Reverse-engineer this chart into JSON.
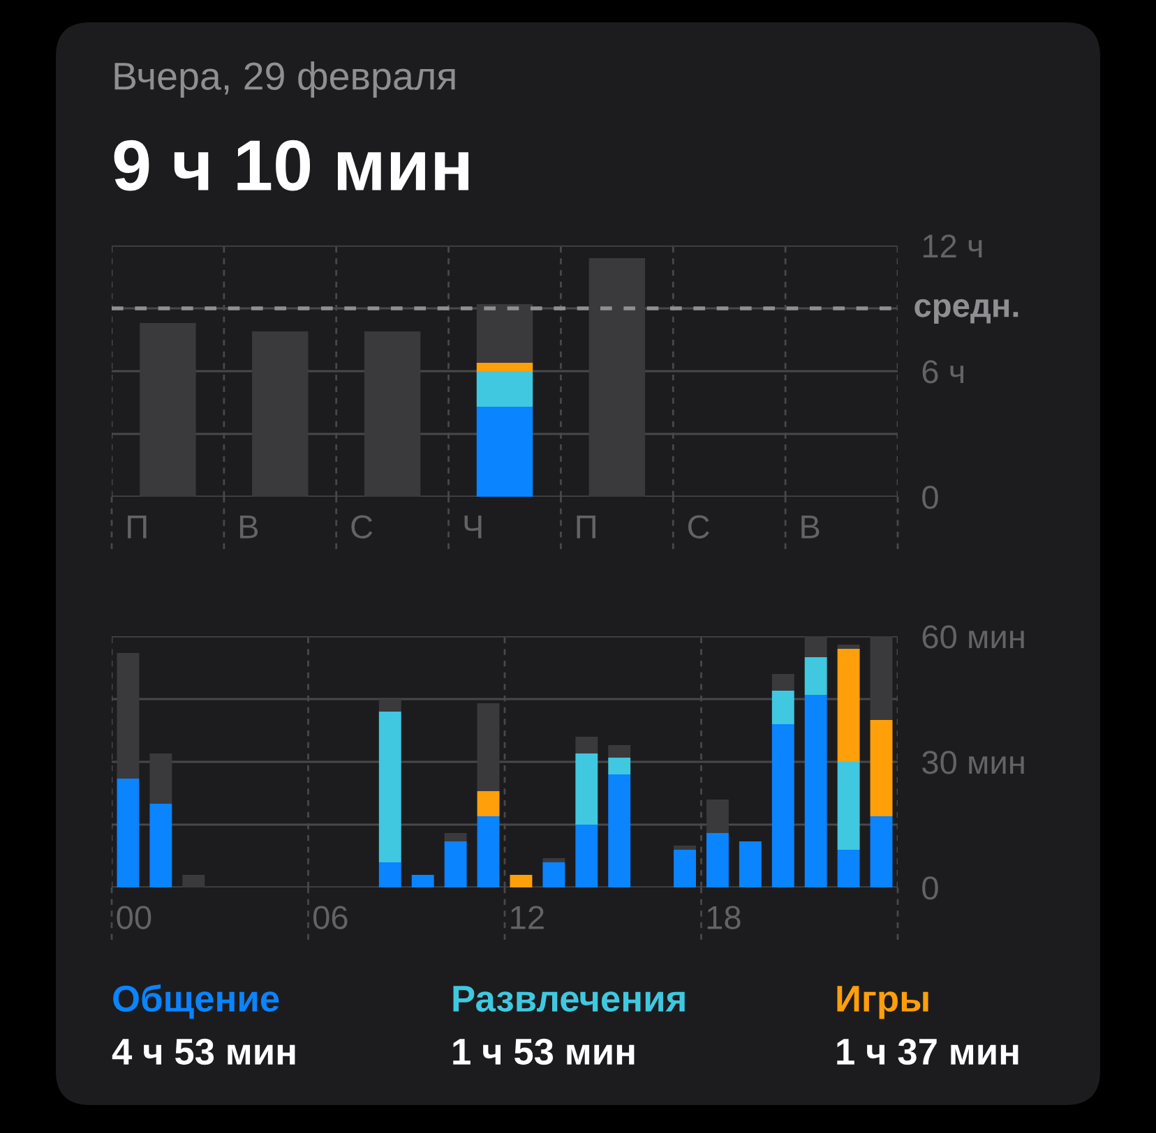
{
  "chart_data": [
    {
      "type": "bar",
      "stacked": true,
      "title": "Вчера, 29 февраля",
      "subtitle": "9 ч 10 мин",
      "categories": [
        "П",
        "В",
        "С",
        "Ч",
        "П",
        "С",
        "В"
      ],
      "series": [
        {
          "color": "#0a84ff",
          "values": [
            null,
            null,
            null,
            4.3,
            null,
            null,
            null
          ]
        },
        {
          "color": "#40c8e0",
          "values": [
            null,
            null,
            null,
            1.7,
            null,
            null,
            null
          ]
        },
        {
          "color": "#ff9f0a",
          "values": [
            null,
            null,
            null,
            0.4,
            null,
            null,
            null
          ]
        },
        {
          "color": "#3a3a3c",
          "values": [
            8.3,
            7.9,
            7.9,
            2.8,
            11.4,
            null,
            null
          ]
        }
      ],
      "ylim": [
        0,
        12
      ],
      "yticks": [
        0,
        {
          "value": 3,
          "label": null
        },
        {
          "value": 6,
          "label": "6 ч"
        },
        {
          "value": 9,
          "label": null
        },
        {
          "value": 12,
          "label": "12 ч"
        }
      ],
      "grid": true,
      "legend": false,
      "ref_lines": [
        {
          "axis": "y",
          "value": 9,
          "label": "средн.",
          "color": "#8e8e93",
          "line_style": "dashed"
        }
      ]
    },
    {
      "type": "bar",
      "stacked": true,
      "categories": [
        "00",
        null,
        null,
        null,
        null,
        null,
        "06",
        null,
        null,
        null,
        null,
        null,
        "12",
        null,
        null,
        null,
        null,
        null,
        "18",
        null,
        null,
        null,
        null,
        null
      ],
      "series": [
        {
          "name": "Общение",
          "color": "#0a84ff",
          "values": [
            26,
            20,
            null,
            null,
            null,
            null,
            null,
            null,
            6,
            3,
            11,
            17,
            null,
            6,
            15,
            27,
            null,
            9,
            13,
            11,
            39,
            46,
            9,
            17
          ]
        },
        {
          "name": "Развлечения",
          "color": "#40c8e0",
          "values": [
            null,
            null,
            null,
            null,
            null,
            null,
            null,
            null,
            36,
            null,
            null,
            null,
            null,
            null,
            17,
            4,
            null,
            null,
            null,
            null,
            8,
            9,
            21,
            null
          ]
        },
        {
          "name": "Игры",
          "color": "#ff9f0a",
          "values": [
            null,
            null,
            null,
            null,
            null,
            null,
            null,
            null,
            null,
            null,
            null,
            6,
            3,
            null,
            null,
            null,
            null,
            null,
            null,
            null,
            null,
            null,
            27,
            23
          ]
        },
        {
          "color": "#3a3a3c",
          "values": [
            30,
            12,
            3,
            null,
            null,
            null,
            null,
            null,
            3,
            null,
            2,
            21,
            null,
            1,
            4,
            3,
            null,
            1,
            8,
            null,
            4,
            5,
            1,
            20
          ]
        }
      ],
      "ylim": [
        0,
        60
      ],
      "yticks": [
        0,
        {
          "value": 15,
          "label": null
        },
        {
          "value": 30,
          "label": "30 мин"
        },
        {
          "value": 45,
          "label": null
        },
        {
          "value": 60,
          "label": "60 мин"
        }
      ],
      "grid": true,
      "legend": "bottom",
      "annotations": [
        "4 ч 53 мин",
        "1 ч 53 мин",
        "1 ч 37 мин"
      ]
    }
  ]
}
